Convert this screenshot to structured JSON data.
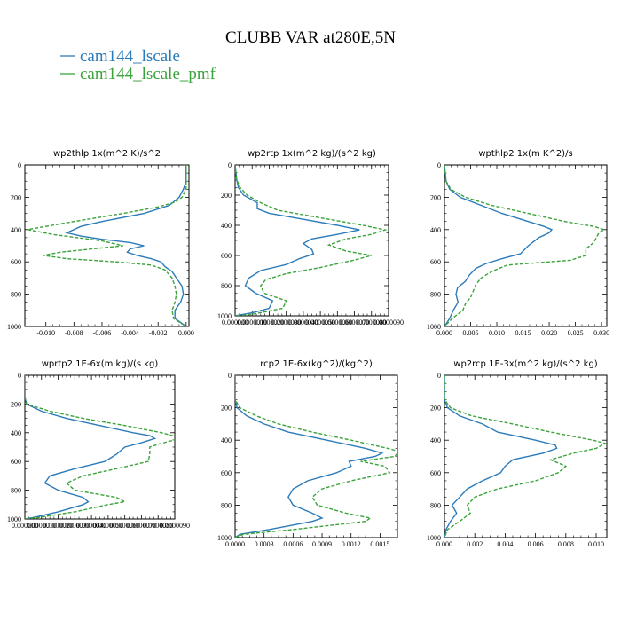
{
  "figure": {
    "title": "CLUBB VAR at280E,5N",
    "legend": [
      {
        "label": "cam144_lscale",
        "color": "#2b7bba",
        "dash": "solid"
      },
      {
        "label": "cam144_lscale_pmf",
        "color": "#3aa33a",
        "dash": "dashed"
      }
    ]
  },
  "chart_data": [
    {
      "type": "line",
      "title": "wp2thlp   1x(m^2 K)/s^2",
      "ylim": [
        1000,
        0
      ],
      "xlim": [
        -0.0115,
        0.0002
      ],
      "xticks": [
        -0.01,
        -0.008,
        -0.006,
        -0.004,
        -0.002,
        0.0
      ],
      "xtick_labels": [
        "-0.010",
        "-0.008",
        "-0.006",
        "-0.004",
        "-0.002",
        "0.000"
      ],
      "yticks": [
        0,
        200,
        400,
        600,
        800,
        1000
      ],
      "ytick_labels": [
        "0",
        "200",
        "400",
        "600",
        "800",
        "1000"
      ],
      "series": [
        {
          "name": "cam144_lscale",
          "y": [
            0,
            100,
            150,
            200,
            250,
            300,
            350,
            380,
            420,
            440,
            460,
            480,
            500,
            520,
            540,
            560,
            580,
            600,
            630,
            660,
            700,
            750,
            800,
            850,
            900,
            950,
            1000
          ],
          "x": [
            0,
            0,
            -0.0002,
            -0.0005,
            -0.0012,
            -0.003,
            -0.006,
            -0.0075,
            -0.0085,
            -0.0075,
            -0.006,
            -0.004,
            -0.003,
            -0.004,
            -0.0042,
            -0.0035,
            -0.0025,
            -0.0018,
            -0.0015,
            -0.001,
            -0.0007,
            -0.0003,
            -0.0002,
            -0.0004,
            -0.0008,
            -0.0008,
            0
          ]
        },
        {
          "name": "cam144_lscale_pmf",
          "y": [
            0,
            100,
            150,
            200,
            230,
            260,
            300,
            350,
            380,
            400,
            430,
            470,
            500,
            540,
            560,
            580,
            600,
            620,
            650,
            700,
            750,
            800,
            850,
            900,
            950,
            1000
          ],
          "x": [
            0,
            0,
            0,
            -0.0003,
            -0.0008,
            -0.002,
            -0.0045,
            -0.008,
            -0.01,
            -0.0113,
            -0.0095,
            -0.006,
            -0.0045,
            -0.009,
            -0.0102,
            -0.0085,
            -0.005,
            -0.0025,
            -0.0015,
            -0.001,
            -0.0008,
            -0.0007,
            -0.0008,
            -0.001,
            -0.0009,
            0
          ]
        }
      ]
    },
    {
      "type": "line",
      "title": "wp2rtp   1x(m^2 kg)/(s^2 kg)",
      "ylim": [
        1000,
        0
      ],
      "xlim": [
        0,
        9e-06
      ],
      "xticks": [
        0,
        1e-06,
        2e-06,
        3e-06,
        4e-06,
        5e-06,
        6e-06,
        7e-06,
        8e-06,
        9e-06
      ],
      "xtick_labels": [
        "0.000000",
        "0.0000010",
        "0.0000020",
        "0.0000030",
        "0.0000040",
        "0.0000050",
        "0.0000060",
        "0.0000070",
        "0.0000080",
        "0.0000090"
      ],
      "yticks": [
        0,
        200,
        400,
        600,
        800,
        1000
      ],
      "ytick_labels": [
        "0",
        "200",
        "400",
        "600",
        "800",
        "1000"
      ],
      "series": [
        {
          "name": "cam144_lscale",
          "y": [
            0,
            100,
            150,
            200,
            250,
            290,
            320,
            360,
            400,
            430,
            460,
            490,
            520,
            560,
            590,
            620,
            660,
            700,
            750,
            800,
            850,
            900,
            950,
            980,
            1000
          ],
          "x": [
            0,
            1e-07,
            2e-07,
            5e-07,
            1.3e-06,
            1.3e-06,
            2e-06,
            4e-06,
            6e-06,
            7.3e-06,
            6e-06,
            4.5e-06,
            4e-06,
            4.5e-06,
            4.6e-06,
            3.8e-06,
            3e-06,
            1.5e-06,
            8e-07,
            6e-07,
            1.2e-06,
            2.2e-06,
            2e-06,
            1e-06,
            0
          ]
        },
        {
          "name": "cam144_lscale_pmf",
          "y": [
            0,
            100,
            150,
            200,
            250,
            300,
            350,
            400,
            430,
            460,
            490,
            530,
            570,
            600,
            630,
            680,
            720,
            760,
            800,
            850,
            900,
            950,
            990,
            1000
          ],
          "x": [
            0,
            1e-07,
            3e-07,
            7e-07,
            1.5e-06,
            2.5e-06,
            5e-06,
            7.5e-06,
            8.8e-06,
            8e-06,
            6.5e-06,
            5.5e-06,
            6.5e-06,
            8e-06,
            7e-06,
            5e-06,
            3e-06,
            1.8e-06,
            1.5e-06,
            1.7e-06,
            3e-06,
            2.8e-06,
            1e-06,
            0
          ]
        }
      ]
    },
    {
      "type": "line",
      "title": "wpthlp2   1x(m K^2)/s",
      "ylim": [
        1000,
        0
      ],
      "xlim": [
        0,
        0.031
      ],
      "xticks": [
        0,
        0.005,
        0.01,
        0.015,
        0.02,
        0.025,
        0.03
      ],
      "xtick_labels": [
        "0.000",
        "0.005",
        "0.010",
        "0.015",
        "0.020",
        "0.025",
        "0.030"
      ],
      "yticks": [
        0,
        200,
        400,
        600,
        800,
        1000
      ],
      "ytick_labels": [
        "0",
        "200",
        "400",
        "600",
        "800",
        "1000"
      ],
      "series": [
        {
          "name": "cam144_lscale",
          "y": [
            0,
            100,
            150,
            200,
            250,
            300,
            350,
            380,
            400,
            420,
            450,
            500,
            550,
            580,
            610,
            640,
            680,
            720,
            760,
            800,
            850,
            900,
            950,
            1000
          ],
          "x": [
            0,
            0.0003,
            0.001,
            0.003,
            0.007,
            0.011,
            0.016,
            0.019,
            0.0205,
            0.02,
            0.018,
            0.016,
            0.0145,
            0.011,
            0.008,
            0.006,
            0.0048,
            0.004,
            0.0025,
            0.0022,
            0.0026,
            0.0017,
            0.001,
            0
          ]
        },
        {
          "name": "cam144_lscale_pmf",
          "y": [
            0,
            100,
            150,
            200,
            250,
            300,
            350,
            380,
            400,
            420,
            450,
            480,
            520,
            560,
            590,
            620,
            660,
            700,
            740,
            780,
            820,
            860,
            900,
            950,
            1000
          ],
          "x": [
            0,
            0.0003,
            0.0012,
            0.004,
            0.009,
            0.016,
            0.023,
            0.0285,
            0.0305,
            0.0295,
            0.029,
            0.0285,
            0.027,
            0.027,
            0.024,
            0.012,
            0.009,
            0.007,
            0.006,
            0.0055,
            0.005,
            0.004,
            0.0035,
            0.0015,
            0
          ]
        }
      ]
    },
    {
      "type": "line",
      "title": "wprtp2   1E-6x(m kg)/(s kg)",
      "ylim": [
        1000,
        0
      ],
      "xlim": [
        0,
        9e-06
      ],
      "xticks": [
        0,
        1e-06,
        2e-06,
        3e-06,
        4e-06,
        5e-06,
        6e-06,
        7e-06,
        8e-06,
        9e-06
      ],
      "xtick_labels": [
        "0.000000",
        "0.0000010",
        "0.0000020",
        "0.0000030",
        "0.0000040",
        "0.0000050",
        "0.0000060",
        "0.0000070",
        "0.0000080",
        "0.0000090"
      ],
      "yticks": [
        0,
        200,
        400,
        600,
        800,
        1000
      ],
      "ytick_labels": [
        "0",
        "200",
        "400",
        "600",
        "800",
        "1000"
      ],
      "series": [
        {
          "name": "cam144_lscale",
          "y": [
            0,
            150,
            200,
            250,
            300,
            350,
            400,
            420,
            440,
            470,
            500,
            550,
            600,
            650,
            700,
            750,
            800,
            850,
            880,
            900,
            950,
            990,
            1000
          ],
          "x": [
            0,
            0,
            1e-07,
            1e-06,
            2.5e-06,
            4.5e-06,
            6.5e-06,
            7.5e-06,
            7.8e-06,
            7e-06,
            6e-06,
            5.5e-06,
            4.8e-06,
            3e-06,
            1.5e-06,
            1.2e-06,
            2e-06,
            3.5e-06,
            3.8e-06,
            3.5e-06,
            2e-06,
            5e-07,
            0
          ]
        },
        {
          "name": "cam144_lscale_pmf",
          "y": [
            0,
            150,
            200,
            250,
            300,
            350,
            400,
            430,
            450,
            480,
            500,
            550,
            600,
            650,
            700,
            750,
            800,
            850,
            880,
            900,
            950,
            990,
            1000
          ],
          "x": [
            0,
            0,
            1e-07,
            1.5e-06,
            3.5e-06,
            6e-06,
            8.2e-06,
            9.2e-06,
            9e-06,
            8e-06,
            7.5e-06,
            7.5e-06,
            7.4e-06,
            5.5e-06,
            3.5e-06,
            2.5e-06,
            3e-06,
            5.5e-06,
            6e-06,
            5e-06,
            3e-06,
            8e-07,
            0
          ]
        }
      ]
    },
    {
      "type": "line",
      "title": "rcp2   1E-6x(kg^2)/(kg^2)",
      "ylim": [
        1000,
        0
      ],
      "xlim": [
        0,
        0.00168
      ],
      "xticks": [
        0,
        0.0003,
        0.0006,
        0.0009,
        0.0012,
        0.0015
      ],
      "xtick_labels": [
        "0.0000",
        "0.0003",
        "0.0006",
        "0.0009",
        "0.0012",
        "0.0015"
      ],
      "yticks": [
        0,
        200,
        400,
        600,
        800,
        1000
      ],
      "ytick_labels": [
        "0",
        "200",
        "400",
        "600",
        "800",
        "1000"
      ],
      "series": [
        {
          "name": "cam144_lscale",
          "y": [
            0,
            150,
            200,
            250,
            300,
            350,
            400,
            450,
            480,
            500,
            530,
            560,
            600,
            650,
            700,
            750,
            800,
            850,
            880,
            900,
            950,
            980,
            1000
          ],
          "x": [
            0,
            0,
            2e-05,
            0.00012,
            0.0003,
            0.00055,
            0.00095,
            0.00135,
            0.00152,
            0.00145,
            0.00118,
            0.0012,
            0.00105,
            0.00075,
            0.0006,
            0.00055,
            0.0006,
            0.0008,
            0.0009,
            0.0008,
            0.00035,
            5e-05,
            0
          ]
        },
        {
          "name": "cam144_lscale_pmf",
          "y": [
            0,
            150,
            200,
            250,
            300,
            350,
            400,
            450,
            470,
            500,
            530,
            560,
            600,
            650,
            700,
            750,
            800,
            850,
            880,
            900,
            950,
            980,
            1000
          ],
          "x": [
            0,
            0,
            5e-05,
            0.00022,
            0.00045,
            0.0008,
            0.0012,
            0.00158,
            0.0017,
            0.00165,
            0.0013,
            0.00155,
            0.0016,
            0.0012,
            0.0009,
            0.0008,
            0.00085,
            0.00115,
            0.0014,
            0.00135,
            0.0006,
            8e-05,
            0
          ]
        }
      ]
    },
    {
      "type": "line",
      "title": "wp2rcp   1E-3x(m^2 kg)/(s^2 kg)",
      "ylim": [
        1000,
        0
      ],
      "xlim": [
        0,
        0.0107
      ],
      "xticks": [
        0,
        0.002,
        0.004,
        0.006,
        0.008,
        0.01
      ],
      "xtick_labels": [
        "0.000",
        "0.002",
        "0.004",
        "0.006",
        "0.008",
        "0.010"
      ],
      "yticks": [
        0,
        200,
        400,
        600,
        800,
        1000
      ],
      "ytick_labels": [
        "0",
        "200",
        "400",
        "600",
        "800",
        "1000"
      ],
      "series": [
        {
          "name": "cam144_lscale",
          "y": [
            0,
            150,
            200,
            250,
            300,
            350,
            400,
            430,
            450,
            480,
            520,
            560,
            600,
            650,
            700,
            750,
            800,
            850,
            900,
            950,
            1000
          ],
          "x": [
            0,
            0,
            0.0002,
            0.001,
            0.0025,
            0.0035,
            0.006,
            0.0073,
            0.0074,
            0.0065,
            0.0045,
            0.004,
            0.0037,
            0.0025,
            0.0015,
            0.001,
            0.0005,
            0.0008,
            0.0004,
            0.0001,
            0
          ]
        },
        {
          "name": "cam144_lscale_pmf",
          "y": [
            0,
            150,
            200,
            250,
            300,
            350,
            400,
            420,
            450,
            480,
            520,
            560,
            600,
            650,
            700,
            750,
            800,
            850,
            900,
            950,
            1000
          ],
          "x": [
            0,
            0,
            0.0004,
            0.0018,
            0.0045,
            0.007,
            0.0098,
            0.0106,
            0.01,
            0.0085,
            0.007,
            0.008,
            0.0075,
            0.006,
            0.0035,
            0.002,
            0.0015,
            0.0017,
            0.001,
            0.0002,
            0
          ]
        }
      ]
    }
  ]
}
